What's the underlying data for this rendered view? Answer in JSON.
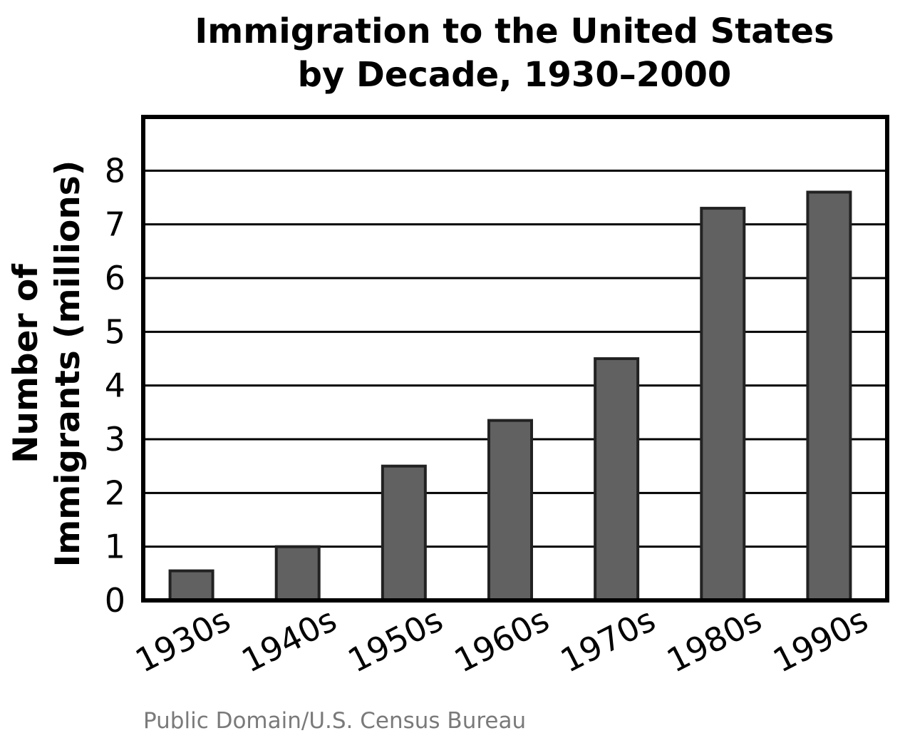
{
  "chart_data": {
    "type": "bar",
    "title_lines": [
      "Immigration to the United States",
      "by Decade, 1930–2000"
    ],
    "xlabel": "",
    "ylabel_lines": [
      "Number of",
      "Immigrants (millions)"
    ],
    "categories": [
      "1930s",
      "1940s",
      "1950s",
      "1960s",
      "1970s",
      "1980s",
      "1990s"
    ],
    "values": [
      0.55,
      1.0,
      2.5,
      3.35,
      4.5,
      7.3,
      7.6
    ],
    "ylim": [
      0,
      9
    ],
    "yticks": [
      0,
      1,
      2,
      3,
      4,
      5,
      6,
      7,
      8
    ],
    "grid": true,
    "legend": "none",
    "colors": {
      "bar_fill": "#616161",
      "bar_stroke": "#222222",
      "grid": "#000000",
      "frame": "#000000",
      "credit": "#7a7a7a"
    }
  },
  "credit": "Public Domain/U.S. Census Bureau"
}
